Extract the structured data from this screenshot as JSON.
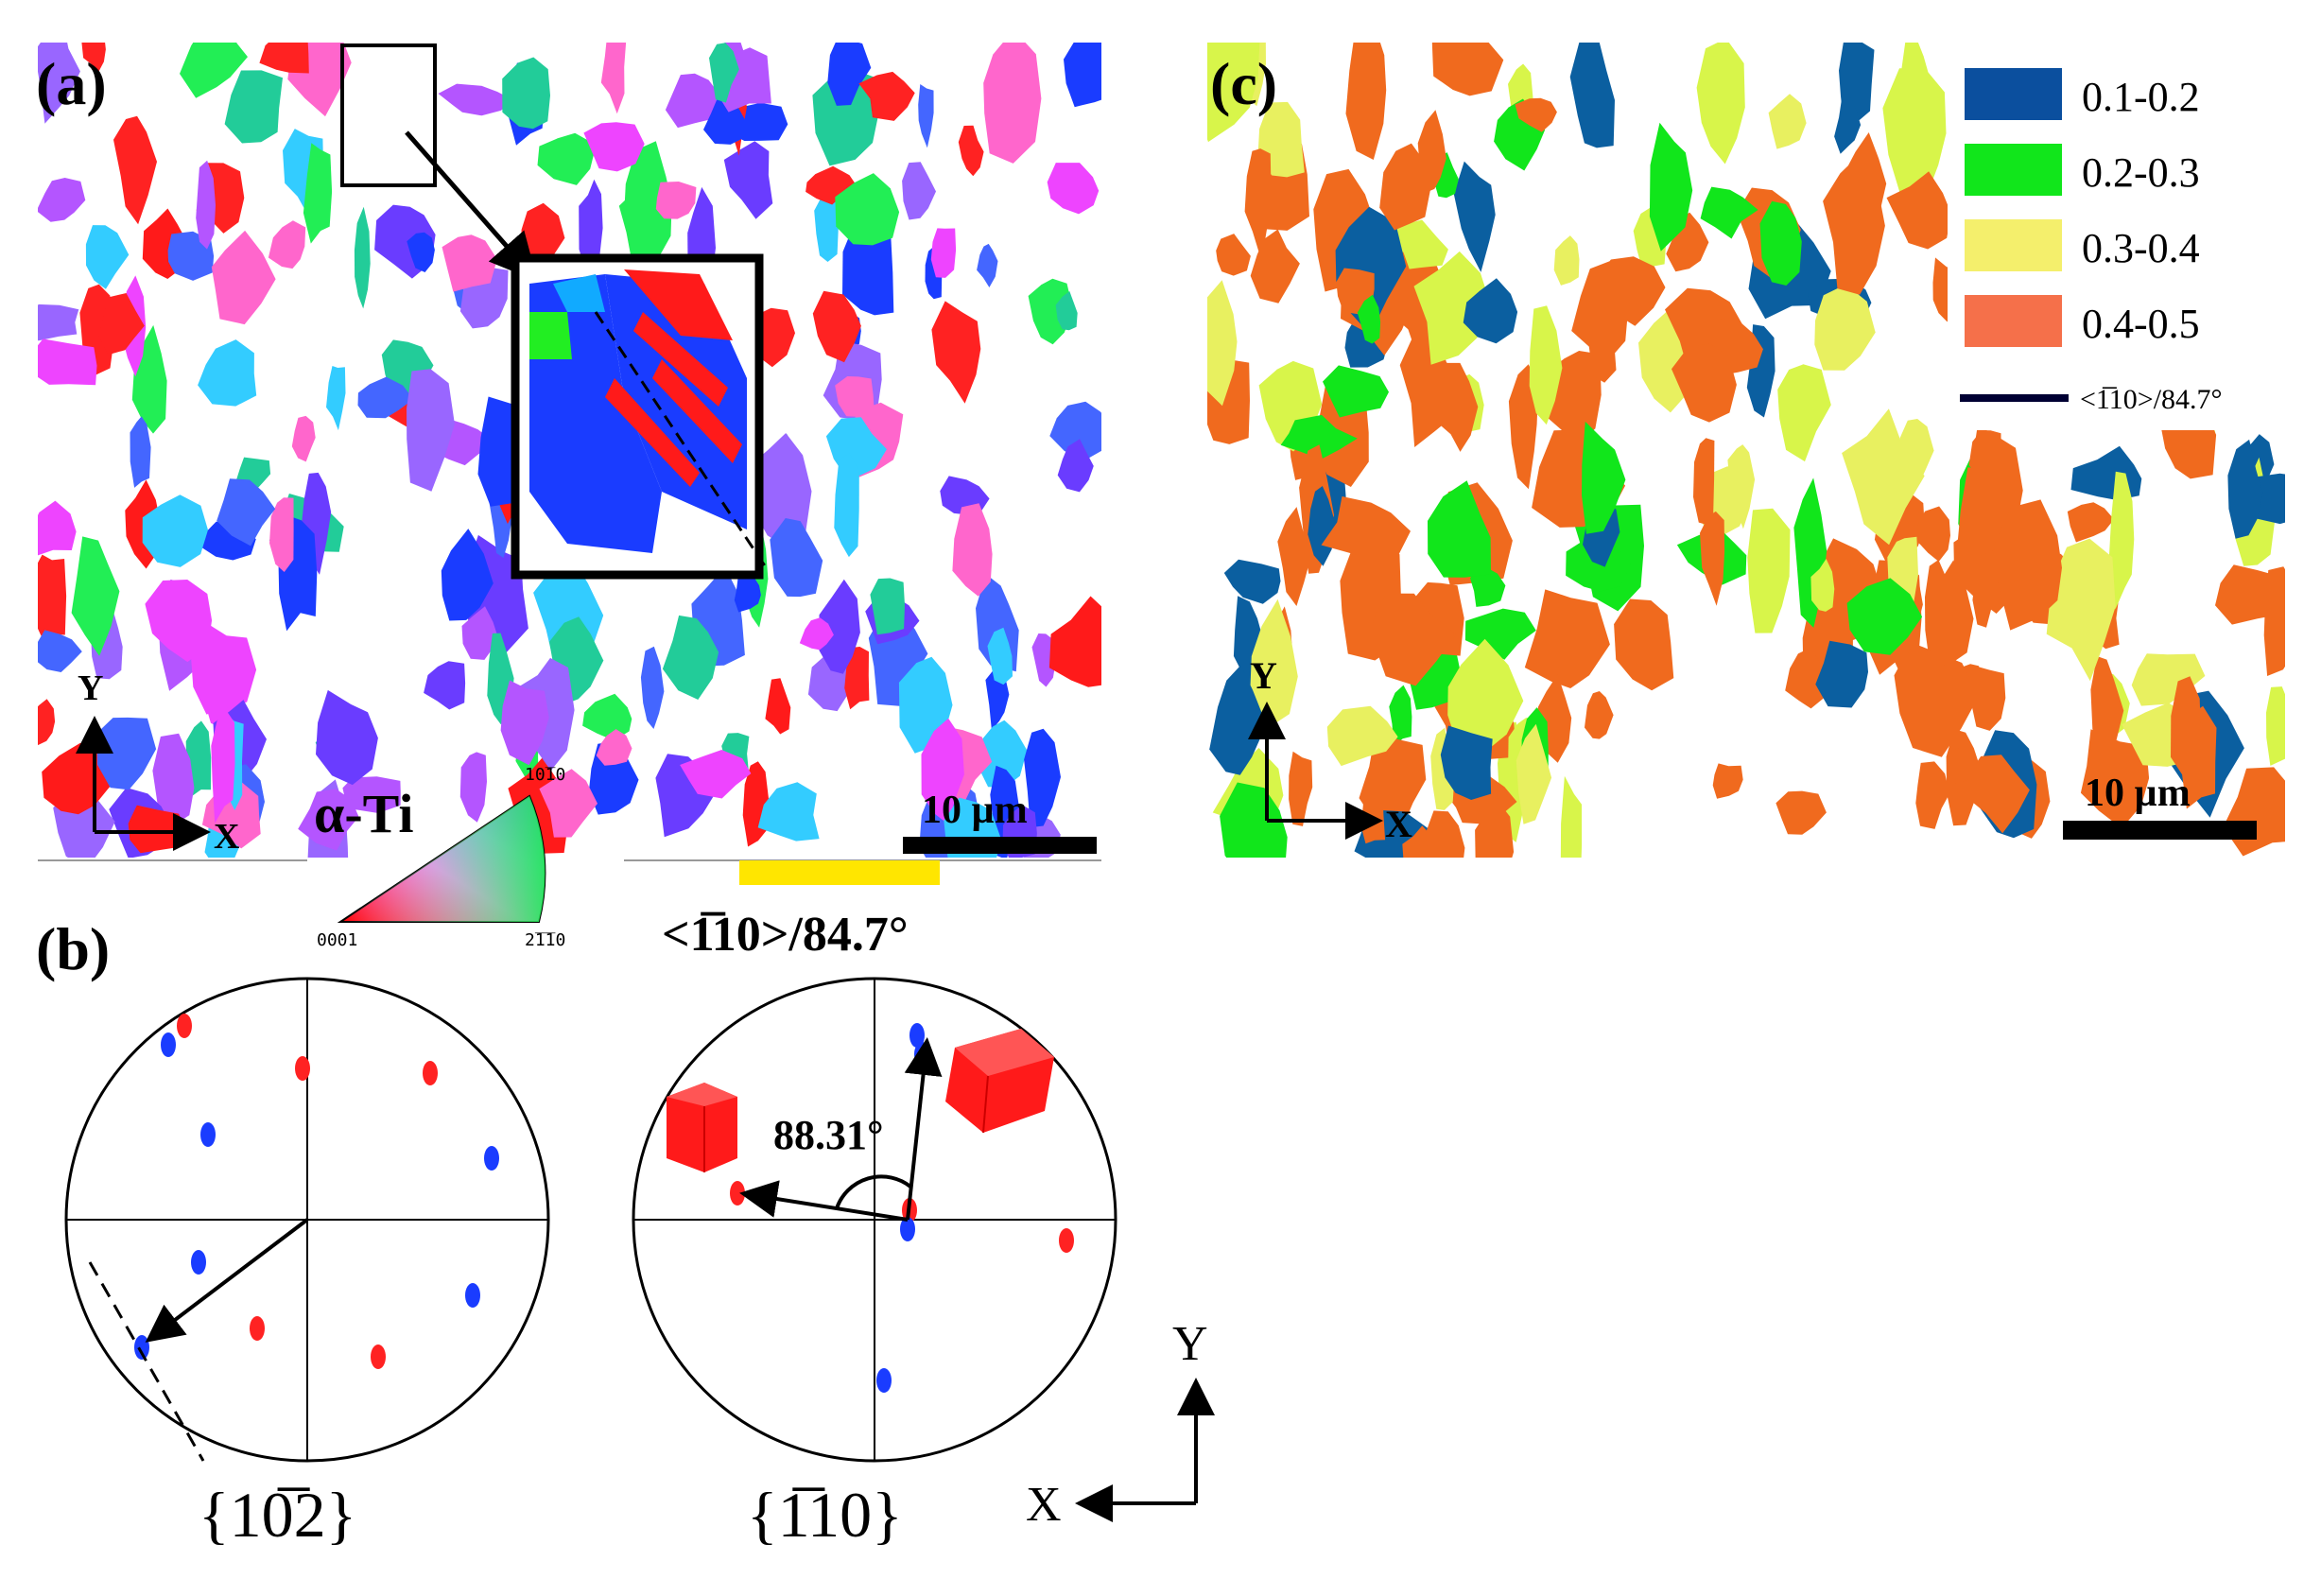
{
  "panels": {
    "a": {
      "label": "(a)",
      "scale_bar": "10 µm",
      "axis_y": "Y",
      "axis_x": "X"
    },
    "b": {
      "label": "(b)",
      "pf_left": "{10̅2}",
      "pf_right": "{1̅10}",
      "angle": "88.31°",
      "axis_y": "Y",
      "axis_x": "X"
    },
    "c": {
      "label": "(c)",
      "scale_bar": "10 µm",
      "axis_y": "Y",
      "axis_x": "X"
    }
  },
  "ipf_key": {
    "phase": "α-Ti",
    "corner_top": "10̅10",
    "corner_left": "0001",
    "corner_right": "2̅1̅10"
  },
  "misorientation_label": "<1̅10>/84.7°",
  "legend": {
    "items": [
      {
        "label": "0.1-0.2",
        "color": "#0b4f9e"
      },
      {
        "label": "0.2-0.3",
        "color": "#11e61b"
      },
      {
        "label": "0.3-0.4",
        "color": "#f4ef6c"
      },
      {
        "label": "0.4-0.5",
        "color": "#f5704a"
      }
    ],
    "boundary_label": "<1̅10>/84.7°",
    "boundary_color": "#000033"
  },
  "colors": {
    "twin": "#ff1a1a",
    "parent": "#1a3cff",
    "orange": "#f06a1e",
    "yellow": "#ffe600"
  }
}
